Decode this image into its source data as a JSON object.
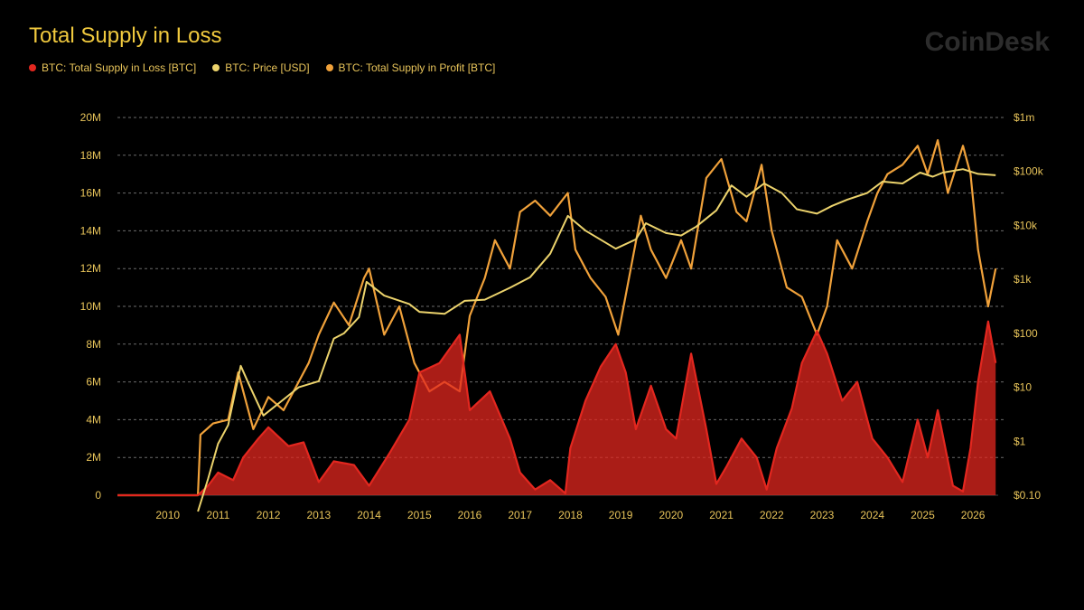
{
  "colors": {
    "background": "#000000",
    "text": "#e8c45a",
    "grid": "#6b6b6b"
  },
  "brand": "CoinDesk",
  "chart_data": {
    "type": "line",
    "title": "Total Supply in Loss",
    "legend_position": "top-left",
    "grid": true,
    "x_ticks": [
      "2010",
      "2011",
      "2012",
      "2013",
      "2014",
      "2015",
      "2016",
      "2017",
      "2018",
      "2019",
      "2020",
      "2021",
      "2022",
      "2023",
      "2024",
      "2025",
      "2026"
    ],
    "xlim": [
      2009.0,
      2026.5
    ],
    "y_left": {
      "ticks": [
        "0",
        "2M",
        "4M",
        "6M",
        "8M",
        "10M",
        "12M",
        "14M",
        "16M",
        "18M",
        "20M"
      ],
      "lim": [
        0,
        20000000
      ]
    },
    "y_right": {
      "scale": "log",
      "ticks": [
        "$0.10",
        "$1",
        "$10",
        "$100",
        "$1k",
        "$10k",
        "$100k",
        "$1m"
      ],
      "lim": [
        0.1,
        1000000
      ]
    },
    "series": [
      {
        "name": "BTC: Total Supply in Loss [BTC]",
        "axis": "left",
        "color": "#e3271f",
        "fill": true,
        "x": [
          2009.0,
          2010.6,
          2010.8,
          2011.0,
          2011.3,
          2011.5,
          2011.8,
          2012.0,
          2012.4,
          2012.7,
          2013.0,
          2013.3,
          2013.7,
          2014.0,
          2014.4,
          2014.8,
          2015.0,
          2015.4,
          2015.8,
          2016.0,
          2016.4,
          2016.8,
          2017.0,
          2017.3,
          2017.6,
          2017.9,
          2018.0,
          2018.3,
          2018.6,
          2018.9,
          2019.1,
          2019.3,
          2019.6,
          2019.9,
          2020.1,
          2020.4,
          2020.7,
          2020.9,
          2021.1,
          2021.4,
          2021.7,
          2021.9,
          2022.1,
          2022.4,
          2022.6,
          2022.9,
          2023.1,
          2023.4,
          2023.7,
          2024.0,
          2024.3,
          2024.6,
          2024.9,
          2025.1,
          2025.3,
          2025.6,
          2025.8,
          2025.95,
          2026.1,
          2026.3,
          2026.45
        ],
        "y": [
          0,
          0,
          500000,
          1200000,
          800000,
          2000000,
          3000000,
          3600000,
          2600000,
          2800000,
          700000,
          1800000,
          1600000,
          500000,
          2200000,
          4000000,
          6500000,
          7000000,
          8500000,
          4500000,
          5500000,
          3000000,
          1200000,
          300000,
          800000,
          100000,
          2500000,
          5000000,
          6800000,
          8000000,
          6500000,
          3500000,
          5800000,
          3500000,
          3000000,
          7500000,
          3500000,
          600000,
          1500000,
          3000000,
          2000000,
          300000,
          2500000,
          4600000,
          7000000,
          8700000,
          7500000,
          5000000,
          6000000,
          3000000,
          2000000,
          700000,
          4000000,
          2000000,
          4500000,
          500000,
          200000,
          2500000,
          6000000,
          9200000,
          7000000
        ]
      },
      {
        "name": "BTC: Price [USD]",
        "axis": "right",
        "color": "#ecd36c",
        "fill": false,
        "x": [
          2010.6,
          2010.8,
          2011.0,
          2011.2,
          2011.45,
          2011.6,
          2011.9,
          2012.2,
          2012.6,
          2013.0,
          2013.3,
          2013.5,
          2013.8,
          2013.95,
          2014.3,
          2014.8,
          2015.0,
          2015.5,
          2015.9,
          2016.3,
          2016.8,
          2017.2,
          2017.6,
          2017.95,
          2018.3,
          2018.9,
          2019.3,
          2019.5,
          2019.9,
          2020.2,
          2020.5,
          2020.9,
          2021.2,
          2021.5,
          2021.85,
          2022.2,
          2022.5,
          2022.9,
          2023.2,
          2023.5,
          2023.9,
          2024.2,
          2024.6,
          2024.95,
          2025.2,
          2025.4,
          2025.8,
          2026.1,
          2026.45
        ],
        "y": [
          0.05,
          0.2,
          0.9,
          2,
          25,
          12,
          3,
          5,
          10,
          13,
          80,
          100,
          200,
          900,
          500,
          350,
          250,
          230,
          400,
          420,
          700,
          1100,
          3000,
          15000,
          8000,
          3700,
          5500,
          11000,
          7200,
          6500,
          9500,
          19000,
          55000,
          34000,
          60000,
          40000,
          20000,
          16500,
          23000,
          30000,
          40000,
          65000,
          60000,
          95000,
          80000,
          95000,
          110000,
          90000,
          85000
        ]
      },
      {
        "name": "BTC: Total Supply in Profit [BTC]",
        "axis": "left",
        "color": "#f0a13a",
        "fill": false,
        "x": [
          2009.0,
          2010.6,
          2010.65,
          2010.9,
          2011.2,
          2011.4,
          2011.7,
          2012.0,
          2012.3,
          2012.6,
          2012.8,
          2013.0,
          2013.3,
          2013.6,
          2013.9,
          2014.0,
          2014.3,
          2014.6,
          2014.9,
          2015.2,
          2015.5,
          2015.8,
          2016.0,
          2016.3,
          2016.5,
          2016.8,
          2017.0,
          2017.3,
          2017.6,
          2017.95,
          2018.1,
          2018.4,
          2018.7,
          2018.95,
          2019.2,
          2019.4,
          2019.6,
          2019.9,
          2020.2,
          2020.4,
          2020.7,
          2021.0,
          2021.3,
          2021.5,
          2021.8,
          2022.0,
          2022.3,
          2022.6,
          2022.9,
          2023.1,
          2023.3,
          2023.6,
          2023.9,
          2024.1,
          2024.3,
          2024.6,
          2024.9,
          2025.1,
          2025.3,
          2025.5,
          2025.8,
          2025.95,
          2026.1,
          2026.3,
          2026.45
        ],
        "y": [
          0,
          0,
          3200000,
          3800000,
          4000000,
          6500000,
          3500000,
          5200000,
          4500000,
          6000000,
          7000000,
          8500000,
          10200000,
          9000000,
          11500000,
          12000000,
          8500000,
          10000000,
          7000000,
          5500000,
          6000000,
          5500000,
          9500000,
          11500000,
          13500000,
          12000000,
          15000000,
          15600000,
          14800000,
          16000000,
          13000000,
          11500000,
          10500000,
          8500000,
          12000000,
          14800000,
          13000000,
          11500000,
          13500000,
          12000000,
          16800000,
          17800000,
          15000000,
          14500000,
          17500000,
          14000000,
          11000000,
          10500000,
          8500000,
          10000000,
          13500000,
          12000000,
          14500000,
          16000000,
          17000000,
          17500000,
          18500000,
          17000000,
          18800000,
          16000000,
          18500000,
          17000000,
          13000000,
          10000000,
          12000000
        ]
      }
    ]
  }
}
